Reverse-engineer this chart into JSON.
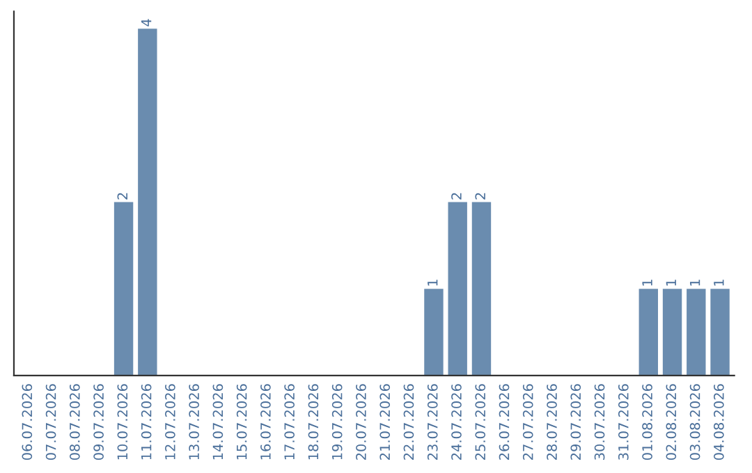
{
  "chart_data": {
    "type": "bar",
    "categories": [
      "06.07.2026",
      "07.07.2026",
      "08.07.2026",
      "09.07.2026",
      "10.07.2026",
      "11.07.2026",
      "12.07.2026",
      "13.07.2026",
      "14.07.2026",
      "15.07.2026",
      "16.07.2026",
      "17.07.2026",
      "18.07.2026",
      "19.07.2026",
      "20.07.2026",
      "21.07.2026",
      "22.07.2026",
      "23.07.2026",
      "24.07.2026",
      "25.07.2026",
      "26.07.2026",
      "27.07.2026",
      "28.07.2026",
      "29.07.2026",
      "30.07.2026",
      "31.07.2026",
      "01.08.2026",
      "02.08.2026",
      "03.08.2026",
      "04.08.2026"
    ],
    "values": [
      0,
      0,
      0,
      0,
      2,
      4,
      0,
      0,
      0,
      0,
      0,
      0,
      0,
      0,
      0,
      0,
      0,
      1,
      2,
      2,
      0,
      0,
      0,
      0,
      0,
      0,
      1,
      1,
      1,
      1
    ],
    "value_labels": [
      null,
      null,
      null,
      null,
      "2",
      "4",
      null,
      null,
      null,
      null,
      null,
      null,
      null,
      null,
      null,
      null,
      null,
      "1",
      "2",
      "2",
      null,
      null,
      null,
      null,
      null,
      null,
      "1",
      "1",
      "1",
      "1"
    ],
    "color": "#6a8caf",
    "grid": false,
    "legend": false,
    "tick_labels": "x"
  }
}
